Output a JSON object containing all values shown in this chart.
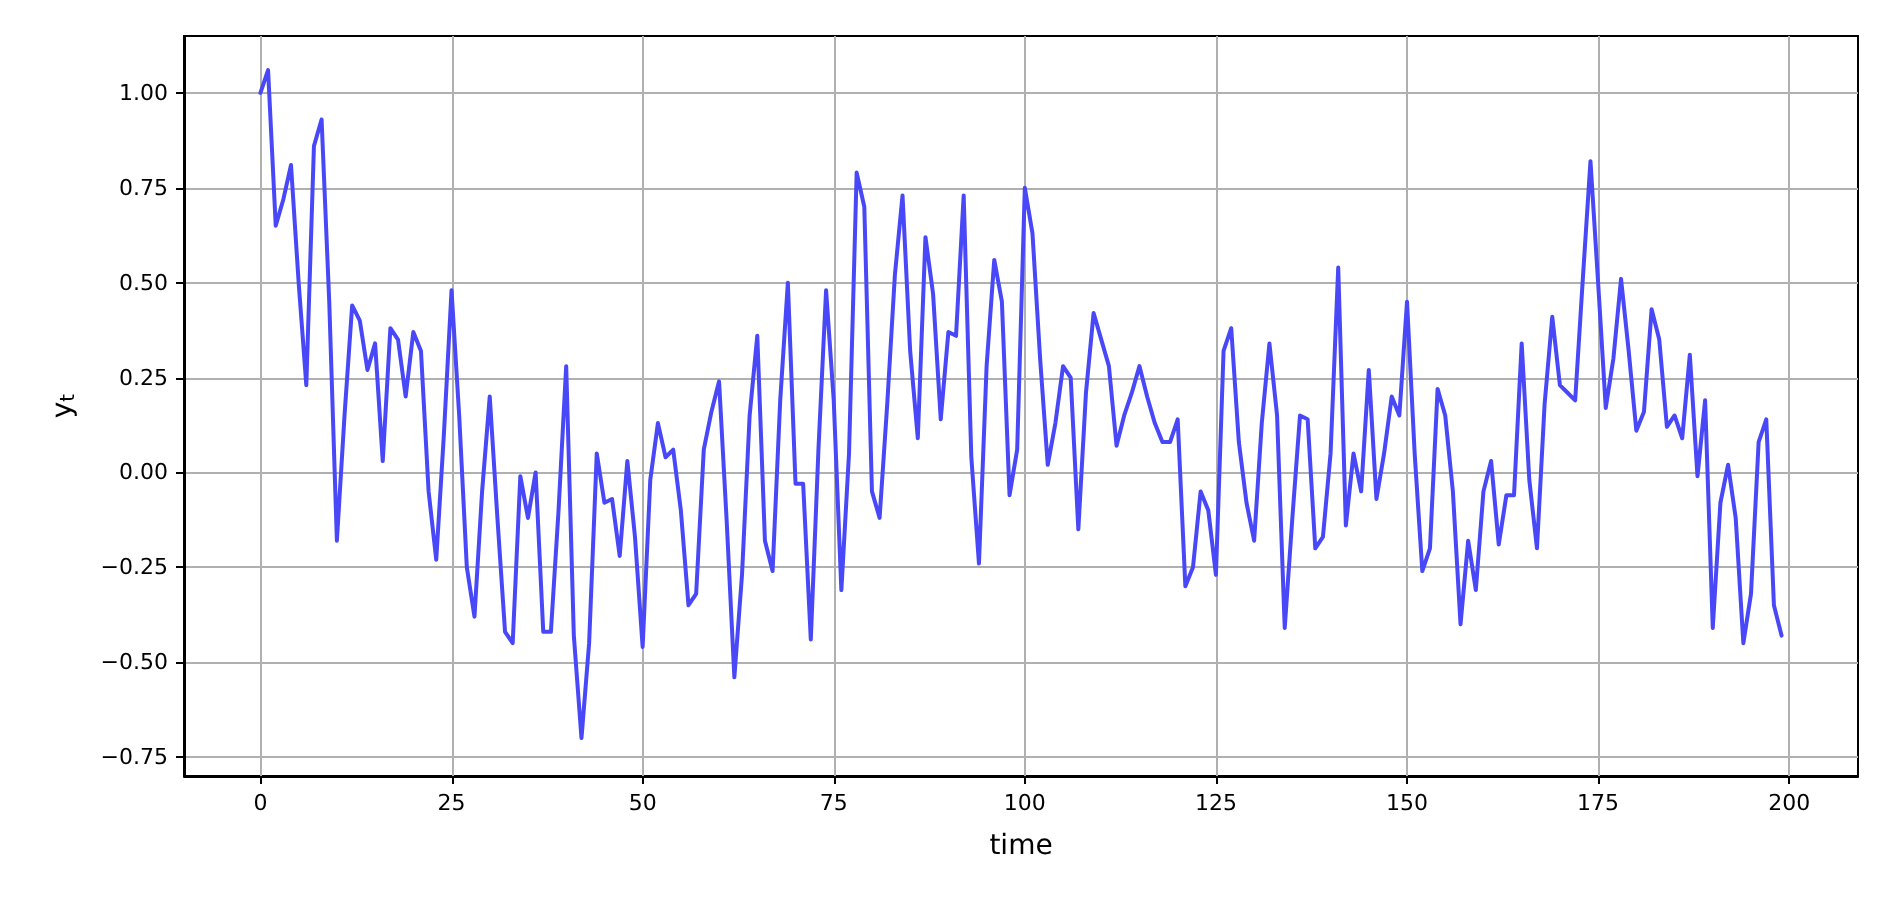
{
  "chart_data": {
    "type": "line",
    "xlabel": "time",
    "ylabel": "y$_{t}$",
    "x": [
      0,
      1,
      2,
      3,
      4,
      5,
      6,
      7,
      8,
      9,
      10,
      11,
      12,
      13,
      14,
      15,
      16,
      17,
      18,
      19,
      20,
      21,
      22,
      23,
      24,
      25,
      26,
      27,
      28,
      29,
      30,
      31,
      32,
      33,
      34,
      35,
      36,
      37,
      38,
      39,
      40,
      41,
      42,
      43,
      44,
      45,
      46,
      47,
      48,
      49,
      50,
      51,
      52,
      53,
      54,
      55,
      56,
      57,
      58,
      59,
      60,
      61,
      62,
      63,
      64,
      65,
      66,
      67,
      68,
      69,
      70,
      71,
      72,
      73,
      74,
      75,
      76,
      77,
      78,
      79,
      80,
      81,
      82,
      83,
      84,
      85,
      86,
      87,
      88,
      89,
      90,
      91,
      92,
      93,
      94,
      95,
      96,
      97,
      98,
      99,
      100,
      101,
      102,
      103,
      104,
      105,
      106,
      107,
      108,
      109,
      110,
      111,
      112,
      113,
      114,
      115,
      116,
      117,
      118,
      119,
      120,
      121,
      122,
      123,
      124,
      125,
      126,
      127,
      128,
      129,
      130,
      131,
      132,
      133,
      134,
      135,
      136,
      137,
      138,
      139,
      140,
      141,
      142,
      143,
      144,
      145,
      146,
      147,
      148,
      149,
      150,
      151,
      152,
      153,
      154,
      155,
      156,
      157,
      158,
      159,
      160,
      161,
      162,
      163,
      164,
      165,
      166,
      167,
      168,
      169,
      170,
      171,
      172,
      173,
      174,
      175,
      176,
      177,
      178,
      179,
      180,
      181,
      182,
      183,
      184,
      185,
      186,
      187,
      188,
      189,
      190,
      191,
      192,
      193,
      194,
      195,
      196,
      197,
      198,
      199
    ],
    "series": [
      {
        "color": "#4848f8",
        "values": [
          1.0,
          1.06,
          0.65,
          0.72,
          0.81,
          0.5,
          0.23,
          0.86,
          0.93,
          0.45,
          -0.18,
          0.15,
          0.44,
          0.4,
          0.27,
          0.34,
          0.03,
          0.38,
          0.35,
          0.2,
          0.37,
          0.32,
          -0.05,
          -0.23,
          0.1,
          0.48,
          0.15,
          -0.25,
          -0.38,
          -0.05,
          0.2,
          -0.12,
          -0.42,
          -0.45,
          -0.01,
          -0.12,
          0.0,
          -0.42,
          -0.42,
          -0.1,
          0.28,
          -0.43,
          -0.7,
          -0.45,
          0.05,
          -0.08,
          -0.07,
          -0.22,
          0.03,
          -0.17,
          -0.46,
          -0.02,
          0.13,
          0.04,
          0.06,
          -0.1,
          -0.35,
          -0.32,
          0.06,
          0.16,
          0.24,
          -0.13,
          -0.54,
          -0.27,
          0.15,
          0.36,
          -0.18,
          -0.26,
          0.19,
          0.5,
          -0.03,
          -0.03,
          -0.44,
          0.06,
          0.48,
          0.19,
          -0.31,
          0.05,
          0.79,
          0.7,
          -0.05,
          -0.12,
          0.18,
          0.52,
          0.73,
          0.32,
          0.09,
          0.62,
          0.47,
          0.14,
          0.37,
          0.36,
          0.73,
          0.04,
          -0.24,
          0.28,
          0.56,
          0.45,
          -0.06,
          0.06,
          0.75,
          0.63,
          0.3,
          0.02,
          0.13,
          0.28,
          0.25,
          -0.15,
          0.21,
          0.42,
          0.35,
          0.28,
          0.07,
          0.15,
          0.21,
          0.28,
          0.2,
          0.13,
          0.08,
          0.08,
          0.14,
          -0.3,
          -0.25,
          -0.05,
          -0.1,
          -0.27,
          0.32,
          0.38,
          0.08,
          -0.08,
          -0.18,
          0.13,
          0.34,
          0.15,
          -0.41,
          -0.12,
          0.15,
          0.14,
          -0.2,
          -0.17,
          0.05,
          0.54,
          -0.14,
          0.05,
          -0.05,
          0.27,
          -0.07,
          0.05,
          0.2,
          0.15,
          0.45,
          0.05,
          -0.26,
          -0.2,
          0.22,
          0.15,
          -0.05,
          -0.4,
          -0.18,
          -0.31,
          -0.05,
          0.03,
          -0.19,
          -0.06,
          -0.06,
          0.34,
          -0.02,
          -0.2,
          0.18,
          0.41,
          0.23,
          0.21,
          0.19,
          0.51,
          0.82,
          0.5,
          0.17,
          0.3,
          0.51,
          0.32,
          0.11,
          0.16,
          0.43,
          0.35,
          0.12,
          0.15,
          0.09,
          0.31,
          -0.01,
          0.19,
          -0.41,
          -0.08,
          0.02,
          -0.12,
          -0.45,
          -0.32,
          0.08,
          0.14,
          -0.35,
          -0.43
        ]
      }
    ],
    "xlim": [
      -10,
      209
    ],
    "xticks": [
      0,
      25,
      50,
      75,
      100,
      125,
      150,
      175,
      200
    ],
    "ylim": [
      -0.8,
      1.15
    ],
    "yticks": [
      {
        "value": -0.75,
        "label": "−0.75"
      },
      {
        "value": -0.5,
        "label": "−0.50"
      },
      {
        "value": -0.25,
        "label": "−0.25"
      },
      {
        "value": 0,
        "label": "0.00"
      },
      {
        "value": 0.25,
        "label": "0.25"
      },
      {
        "value": 0.5,
        "label": "0.50"
      },
      {
        "value": 0.75,
        "label": "0.75"
      },
      {
        "value": 1.0,
        "label": "1.00"
      }
    ],
    "grid": true,
    "line_style": "solid"
  }
}
